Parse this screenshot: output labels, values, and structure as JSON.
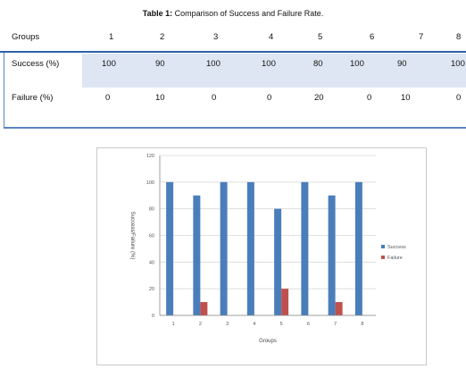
{
  "table": {
    "caption_bold": "Table 1:",
    "caption_rest": " Comparison of Success and Failure Rate.",
    "header_label": "Groups",
    "groups": [
      "1",
      "2",
      "3",
      "4",
      "5",
      "6",
      "7",
      "8"
    ],
    "rows": [
      {
        "label": "Success (%)",
        "values": [
          "100",
          "90",
          "100",
          "100",
          "80",
          "100",
          "90",
          "100"
        ]
      },
      {
        "label": "Failure (%)",
        "values": [
          "0",
          "10",
          "0",
          "0",
          "20",
          "0",
          "10",
          "0"
        ]
      }
    ]
  },
  "chart_data": {
    "type": "bar",
    "categories": [
      "1",
      "2",
      "3",
      "4",
      "5",
      "6",
      "7",
      "8"
    ],
    "series": [
      {
        "name": "Success",
        "color": "#4a7ebb",
        "values": [
          100,
          90,
          100,
          100,
          80,
          100,
          90,
          100
        ]
      },
      {
        "name": "Failure",
        "color": "#c0504d",
        "values": [
          0,
          10,
          0,
          0,
          20,
          0,
          10,
          0
        ]
      }
    ],
    "xlabel": "Groups",
    "ylabel": "Success/Failure (%)",
    "ylim": [
      0,
      120
    ],
    "yticks": [
      0,
      20,
      40,
      60,
      80,
      100,
      120
    ],
    "grid": true,
    "legend": "right"
  }
}
